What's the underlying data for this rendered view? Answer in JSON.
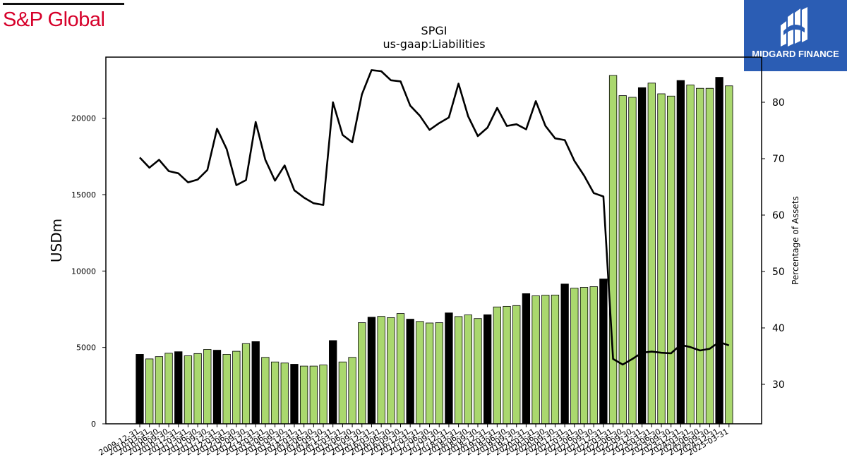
{
  "header": {
    "left_logo_text": "S&P Global",
    "right_logo_text": "MIDGARD FINANCE"
  },
  "chart_data": {
    "type": "bar",
    "title": "SPGI",
    "subtitle": "us-gaap:Liabilities",
    "ylabel": "USDm",
    "y2label": "Percentage of Assets",
    "ylim": [
      0,
      24000
    ],
    "y2lim": [
      23,
      88
    ],
    "yticks": [
      0,
      5000,
      10000,
      15000,
      20000
    ],
    "y2ticks": [
      30,
      40,
      50,
      60,
      70,
      80
    ],
    "grid": false,
    "colors": {
      "bar_annual": "#000000",
      "bar_quarter": "#aad86e",
      "bar_edge": "#000000",
      "line": "#000000"
    },
    "x_tick_labels": [
      "2009-12-31",
      "2010-03-31",
      "2010-06-30",
      "2010-09-30",
      "2010-12-31",
      "2011-03-31",
      "2011-06-30",
      "2011-09-30",
      "2011-12-31",
      "2012-03-31",
      "2012-06-30",
      "2012-09-30",
      "2012-12-31",
      "2013-03-31",
      "2013-06-30",
      "2013-09-30",
      "2013-12-31",
      "2014-03-31",
      "2014-06-30",
      "2014-09-30",
      "2014-12-31",
      "2015-03-31",
      "2015-06-30",
      "2015-09-30",
      "2015-12-31",
      "2016-03-31",
      "2016-06-30",
      "2016-09-30",
      "2016-12-31",
      "2017-03-31",
      "2017-06-30",
      "2017-09-30",
      "2017-12-31",
      "2018-03-31",
      "2018-06-30",
      "2018-09-30",
      "2018-12-31",
      "2019-03-31",
      "2019-06-30",
      "2019-09-30",
      "2019-12-31",
      "2020-03-31",
      "2020-06-30",
      "2020-09-30",
      "2020-12-31",
      "2021-03-31",
      "2021-06-30",
      "2021-09-30",
      "2021-12-31",
      "2022-03-31",
      "2022-06-30",
      "2022-09-30",
      "2022-12-31",
      "2023-03-31",
      "2023-06-30",
      "2023-09-30",
      "2023-12-31",
      "2024-03-31",
      "2024-06-30",
      "2024-09-30",
      "2024-12-31",
      "2025-03-31"
    ],
    "series": [
      {
        "type": "bar",
        "annual": [
          true,
          false,
          false,
          false,
          true,
          false,
          false,
          false,
          true,
          false,
          false,
          false,
          true,
          false,
          false,
          false,
          true,
          false,
          false,
          false,
          true,
          false,
          false,
          false,
          true,
          false,
          false,
          false,
          true,
          false,
          false,
          false,
          true,
          false,
          false,
          false,
          true,
          false,
          false,
          false,
          true,
          false,
          false,
          false,
          true,
          false,
          false,
          false,
          true,
          false,
          false,
          false,
          true,
          false,
          false,
          false,
          true,
          false,
          false,
          false,
          true,
          false
        ],
        "values": [
          4550,
          4250,
          4400,
          4620,
          4720,
          4450,
          4600,
          4870,
          4820,
          4550,
          4750,
          5250,
          5380,
          4350,
          4050,
          3980,
          3900,
          3780,
          3780,
          3850,
          5450,
          4050,
          4350,
          6620,
          6980,
          7030,
          6950,
          7220,
          6850,
          6700,
          6600,
          6620,
          7260,
          7020,
          7130,
          6890,
          7140,
          7650,
          7690,
          7740,
          8520,
          8380,
          8420,
          8430,
          9150,
          8880,
          8930,
          8980,
          9480,
          22800,
          21480,
          21370,
          22000,
          22300,
          21600,
          21450,
          22470,
          22180,
          21960,
          21960,
          22680,
          22120
        ]
      },
      {
        "type": "line",
        "values": [
          70.2,
          68.4,
          69.8,
          67.8,
          67.4,
          65.8,
          66.3,
          68.0,
          75.3,
          71.7,
          65.3,
          66.2,
          76.5,
          69.8,
          66.1,
          68.8,
          64.4,
          63.1,
          62.1,
          61.8,
          80.0,
          74.2,
          72.9,
          81.4,
          85.7,
          85.5,
          83.9,
          83.7,
          79.4,
          77.6,
          75.1,
          76.3,
          77.3,
          83.3,
          77.5,
          74.0,
          75.5,
          79.0,
          75.8,
          76.1,
          75.2,
          80.2,
          75.8,
          73.6,
          73.3,
          69.6,
          67.0,
          63.9,
          63.3,
          34.5,
          33.5,
          34.5,
          35.6,
          35.8,
          35.6,
          35.5,
          37.0,
          36.6,
          36.0,
          36.3,
          37.5,
          36.9
        ]
      }
    ]
  }
}
